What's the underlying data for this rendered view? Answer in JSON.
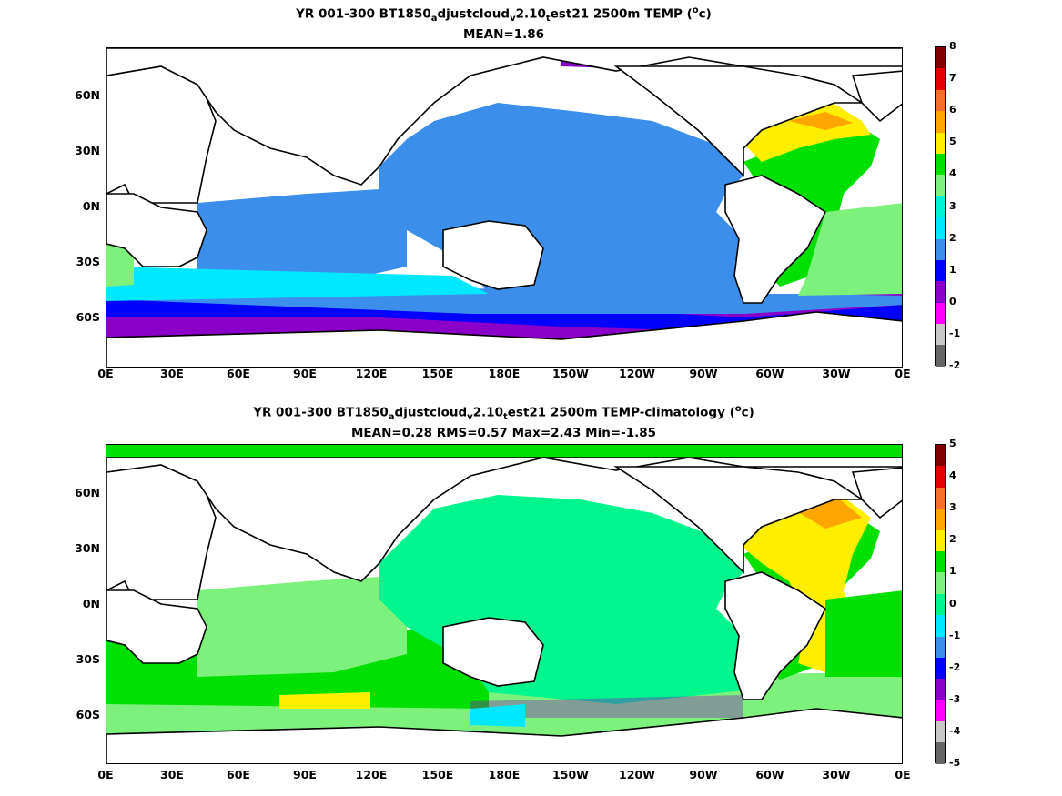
{
  "panels": [
    {
      "title_prefix": "YR 001-300 BT1850",
      "title_sub1": "a",
      "title_mid1": "djustcloud",
      "title_sub2": "v",
      "title_mid2": "2.10",
      "title_sub3": "t",
      "title_suffix": "est21 2500m TEMP (",
      "title_sup": "o",
      "title_end": "c)",
      "stats": "MEAN=1.86",
      "colorbar_ticks": [
        "8",
        "7",
        "6",
        "5",
        "4",
        "3",
        "2",
        "1",
        "0",
        "-1",
        "-2"
      ],
      "colorbar_colors": [
        "#7f0000",
        "#e50000",
        "#f46d2b",
        "#ffa500",
        "#ffee00",
        "#00e000",
        "#7cf27c",
        "#00f2d6",
        "#00e8ff",
        "#3b8eea",
        "#0000ff",
        "#8a00c8",
        "#ff00ff",
        "#c8c8c8",
        "#666666"
      ]
    },
    {
      "title_prefix": "YR 001-300 BT1850",
      "title_sub1": "a",
      "title_mid1": "djustcloud",
      "title_sub2": "v",
      "title_mid2": "2.10",
      "title_sub3": "t",
      "title_suffix": "est21 2500m TEMP-climatology (",
      "title_sup": "o",
      "title_end": "c)",
      "stats": "MEAN=0.28   RMS=0.57   Max=2.43   Min=-1.85",
      "colorbar_ticks": [
        "5",
        "4",
        "3",
        "2",
        "1",
        "0",
        "-1",
        "-2",
        "-3",
        "-4",
        "-5"
      ],
      "colorbar_colors": [
        "#7f0000",
        "#e50000",
        "#f46d2b",
        "#ffa500",
        "#ffee00",
        "#00e000",
        "#7cf27c",
        "#00f58c",
        "#00e8ff",
        "#3b8eea",
        "#0000ff",
        "#8a00c8",
        "#ff00ff",
        "#c8c8c8",
        "#666666"
      ]
    }
  ],
  "lat_labels": [
    "60N",
    "30N",
    "0N",
    "30S",
    "60S"
  ],
  "lon_labels": [
    "0E",
    "30E",
    "60E",
    "90E",
    "120E",
    "150E",
    "180E",
    "150W",
    "120W",
    "90W",
    "60W",
    "30W",
    "0E"
  ]
}
